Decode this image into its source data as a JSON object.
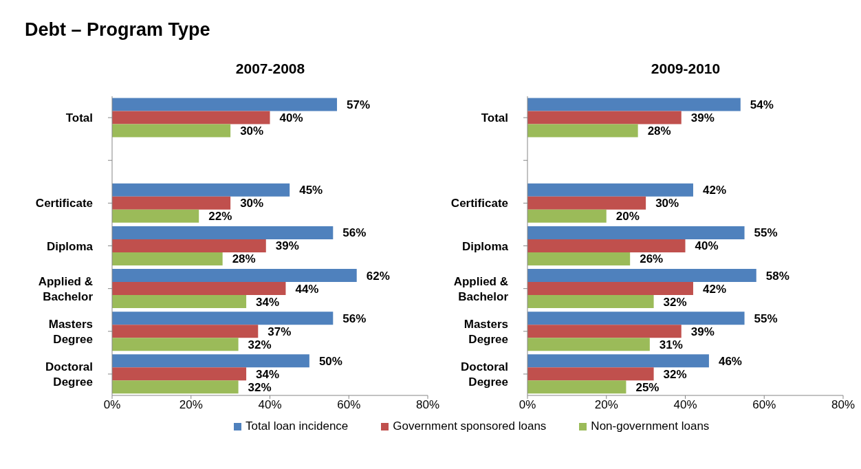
{
  "chart_data": [
    {
      "type": "bar",
      "orientation": "horizontal",
      "title": "Debt – Program Type",
      "subtitle": "2007-2008",
      "categories": [
        "Total",
        null,
        "Certificate",
        "Diploma",
        "Applied & Bachelor",
        "Masters Degree",
        "Doctoral Degree"
      ],
      "series": [
        {
          "name": "Total loan incidence",
          "color": "#4f81bd",
          "values": [
            57,
            null,
            45,
            56,
            62,
            56,
            50
          ],
          "value_labels": [
            "57%",
            null,
            "45%",
            "56%",
            "62%",
            "56%",
            "50%"
          ]
        },
        {
          "name": "Government sponsored loans",
          "color": "#c0504d",
          "values": [
            40,
            null,
            30,
            39,
            44,
            37,
            34
          ],
          "value_labels": [
            "40%",
            null,
            "30%",
            "39%",
            "44%",
            "37%",
            "34%"
          ]
        },
        {
          "name": "Non-government loans",
          "color": "#9bbb59",
          "values": [
            30,
            null,
            22,
            28,
            34,
            32,
            32
          ],
          "value_labels": [
            "30%",
            null,
            "22%",
            "28%",
            "34%",
            "32%",
            "32%"
          ]
        }
      ],
      "xlim": [
        0,
        80
      ],
      "xticks": [
        {
          "value": 0,
          "label": "0%"
        },
        {
          "value": 20,
          "label": "20%"
        },
        {
          "value": 40,
          "label": "40%"
        },
        {
          "value": 60,
          "label": "60%"
        },
        {
          "value": 80,
          "label": "80%"
        }
      ],
      "grid": false,
      "legend": "bottom"
    },
    {
      "type": "bar",
      "orientation": "horizontal",
      "title": "2009-2010",
      "categories": [
        "Total",
        null,
        "Certificate",
        "Diploma",
        "Applied & Bachelor",
        "Masters Degree",
        "Doctoral Degree"
      ],
      "series": [
        {
          "color": "#4f81bd",
          "values": [
            54,
            null,
            42,
            55,
            58,
            55,
            46
          ],
          "value_labels": [
            "54%",
            null,
            "42%",
            "55%",
            "58%",
            "55%",
            "46%"
          ]
        },
        {
          "color": "#c0504d",
          "values": [
            39,
            null,
            30,
            40,
            42,
            39,
            32
          ],
          "value_labels": [
            "39%",
            null,
            "30%",
            "40%",
            "42%",
            "39%",
            "32%"
          ]
        },
        {
          "color": "#9bbb59",
          "values": [
            28,
            null,
            20,
            26,
            32,
            31,
            25
          ],
          "value_labels": [
            "28%",
            null,
            "20%",
            "26%",
            "32%",
            "31%",
            "25%"
          ]
        }
      ],
      "xlim": [
        0,
        80
      ],
      "xticks": [
        {
          "value": 0,
          "label": "0%"
        },
        {
          "value": 20,
          "label": "20%"
        },
        {
          "value": 40,
          "label": "40%"
        },
        {
          "value": 60,
          "label": "60%"
        },
        {
          "value": 80,
          "label": "80%"
        }
      ],
      "grid": false
    }
  ]
}
